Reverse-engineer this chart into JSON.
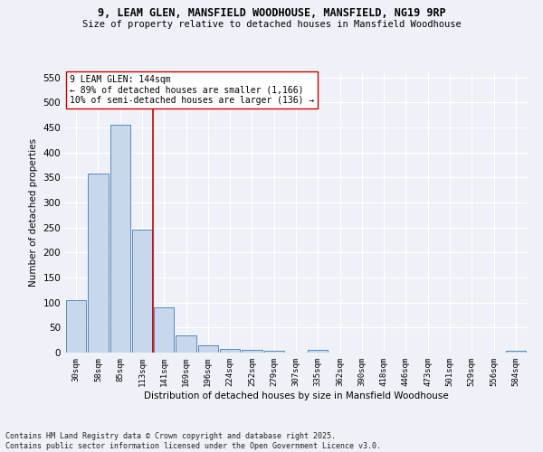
{
  "title": "9, LEAM GLEN, MANSFIELD WOODHOUSE, MANSFIELD, NG19 9RP",
  "subtitle": "Size of property relative to detached houses in Mansfield Woodhouse",
  "xlabel": "Distribution of detached houses by size in Mansfield Woodhouse",
  "ylabel": "Number of detached properties",
  "bar_color": "#c8d8ec",
  "bar_edge_color": "#5a8ab5",
  "bin_labels": [
    "30sqm",
    "58sqm",
    "85sqm",
    "113sqm",
    "141sqm",
    "169sqm",
    "196sqm",
    "224sqm",
    "252sqm",
    "279sqm",
    "307sqm",
    "335sqm",
    "362sqm",
    "390sqm",
    "418sqm",
    "446sqm",
    "473sqm",
    "501sqm",
    "529sqm",
    "556sqm",
    "584sqm"
  ],
  "bar_values": [
    105,
    358,
    456,
    246,
    90,
    35,
    14,
    8,
    5,
    3,
    0,
    5,
    0,
    0,
    0,
    0,
    0,
    0,
    0,
    0,
    3
  ],
  "vline_index": 4,
  "vline_color": "#cc0000",
  "ylim": [
    0,
    560
  ],
  "yticks": [
    0,
    50,
    100,
    150,
    200,
    250,
    300,
    350,
    400,
    450,
    500,
    550
  ],
  "annotation_text": "9 LEAM GLEN: 144sqm\n← 89% of detached houses are smaller (1,166)\n10% of semi-detached houses are larger (136) →",
  "bg_color": "#eef2f8",
  "grid_color": "#ffffff",
  "footer": "Contains HM Land Registry data © Crown copyright and database right 2025.\nContains public sector information licensed under the Open Government Licence v3.0."
}
